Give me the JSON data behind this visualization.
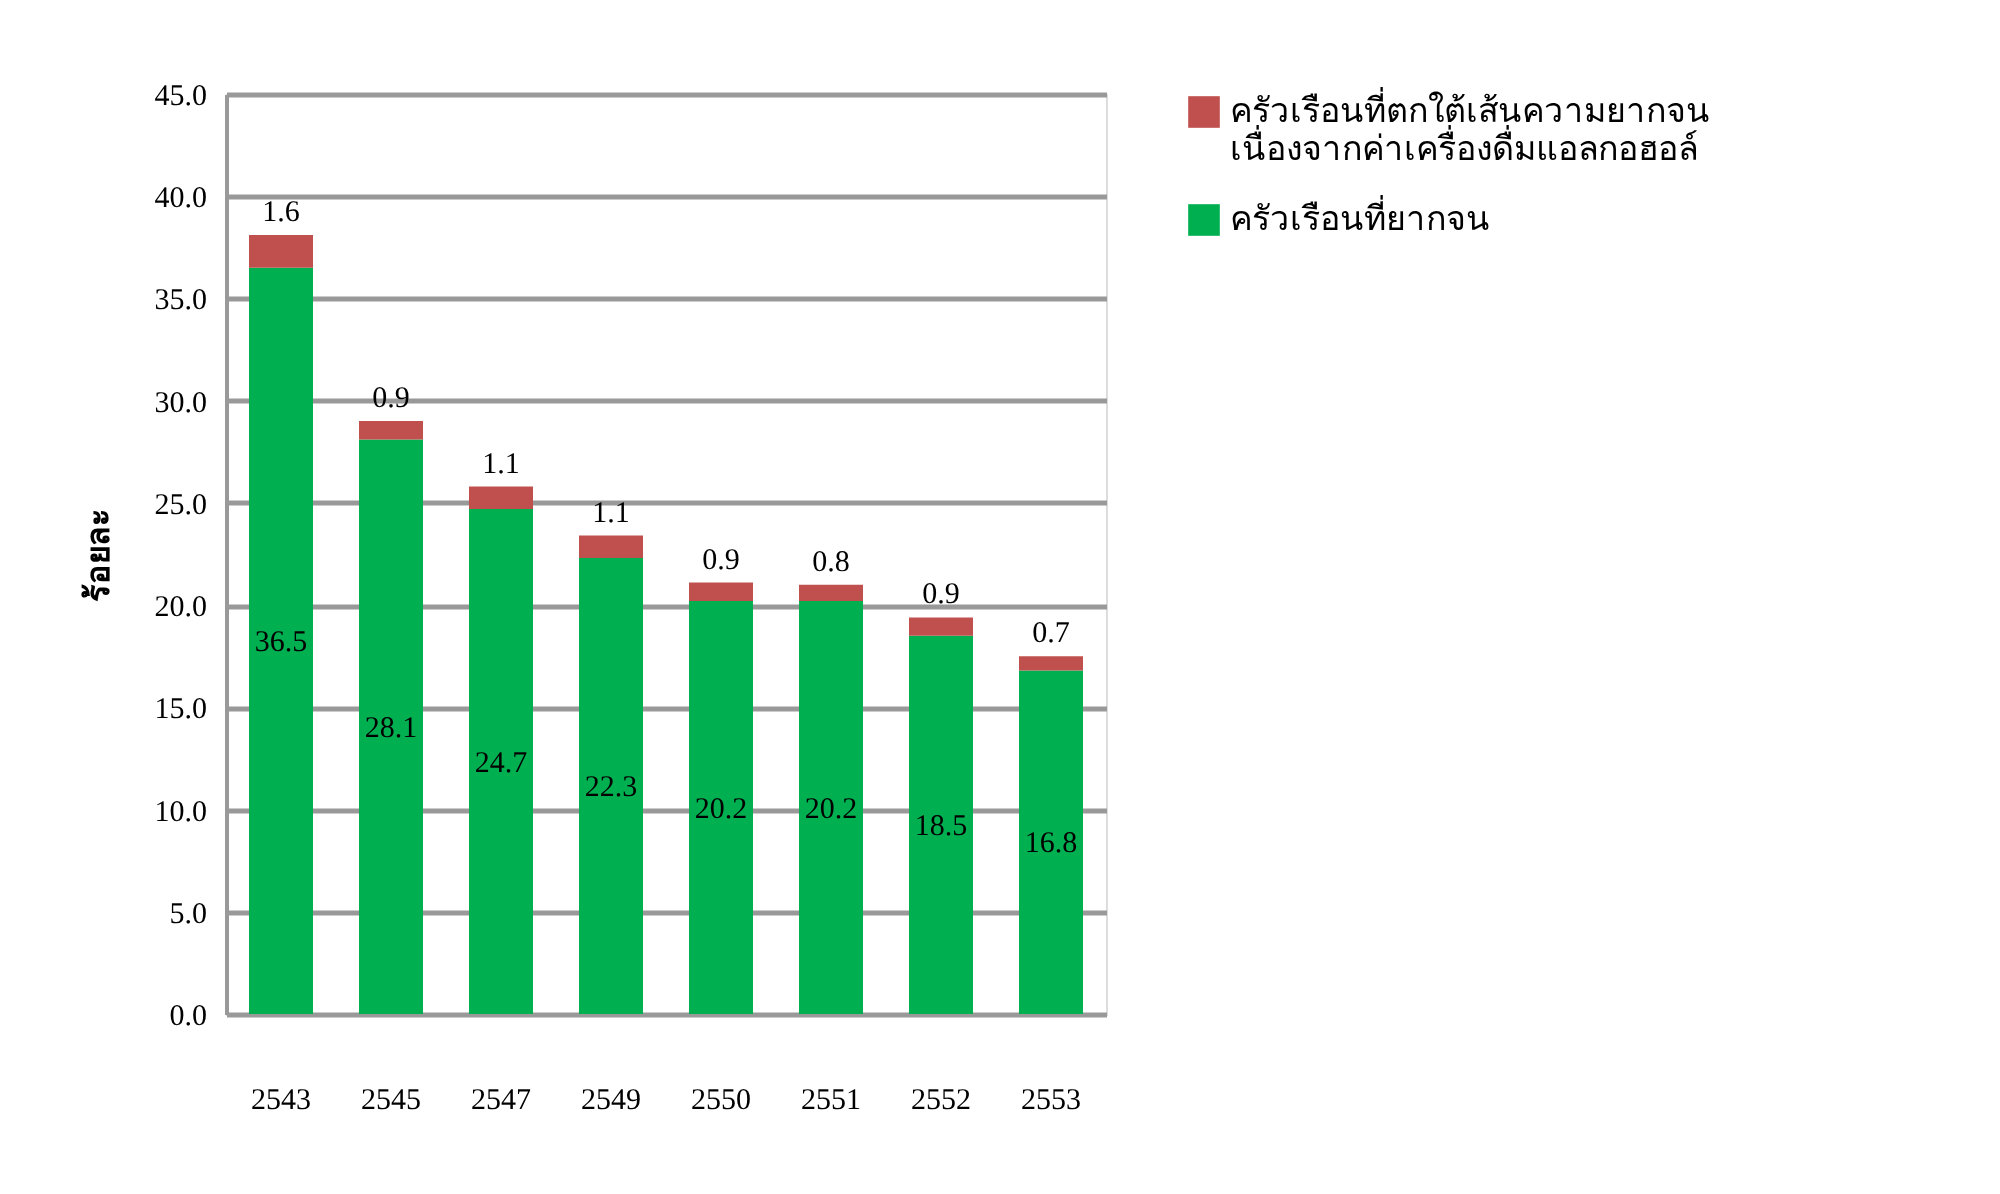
{
  "chart_data": {
    "type": "bar",
    "stacked": true,
    "ylabel": "ร้อยละ",
    "categories": [
      "2543",
      "2545",
      "2547",
      "2549",
      "2550",
      "2551",
      "2552",
      "2553"
    ],
    "series": [
      {
        "name": "ครัวเรือนที่ยากจน",
        "color": "#00b050",
        "values": [
          36.5,
          28.1,
          24.7,
          22.3,
          20.2,
          20.2,
          18.5,
          16.8
        ]
      },
      {
        "name": "ครัวเรือนที่ตกใต้เส้นความยากจน เนื่องจากค่าเครื่องดื่มแอลกอฮอล์",
        "color": "#c0504d",
        "values": [
          1.6,
          0.9,
          1.1,
          1.1,
          0.9,
          0.8,
          0.9,
          0.7
        ]
      }
    ],
    "ylim": [
      0,
      45
    ],
    "yticks": [
      {
        "value": 0,
        "label": "0.0"
      },
      {
        "value": 5,
        "label": "5.0"
      },
      {
        "value": 10,
        "label": "10.0"
      },
      {
        "value": 15,
        "label": "15.0"
      },
      {
        "value": 20,
        "label": "20.0"
      },
      {
        "value": 25,
        "label": "25.0"
      },
      {
        "value": 30,
        "label": "30.0"
      },
      {
        "value": 35,
        "label": "35.0"
      },
      {
        "value": 40,
        "label": "40.0"
      },
      {
        "value": 45,
        "label": "45.0"
      }
    ],
    "grid": "y",
    "legend": "right",
    "data_labels": true
  }
}
